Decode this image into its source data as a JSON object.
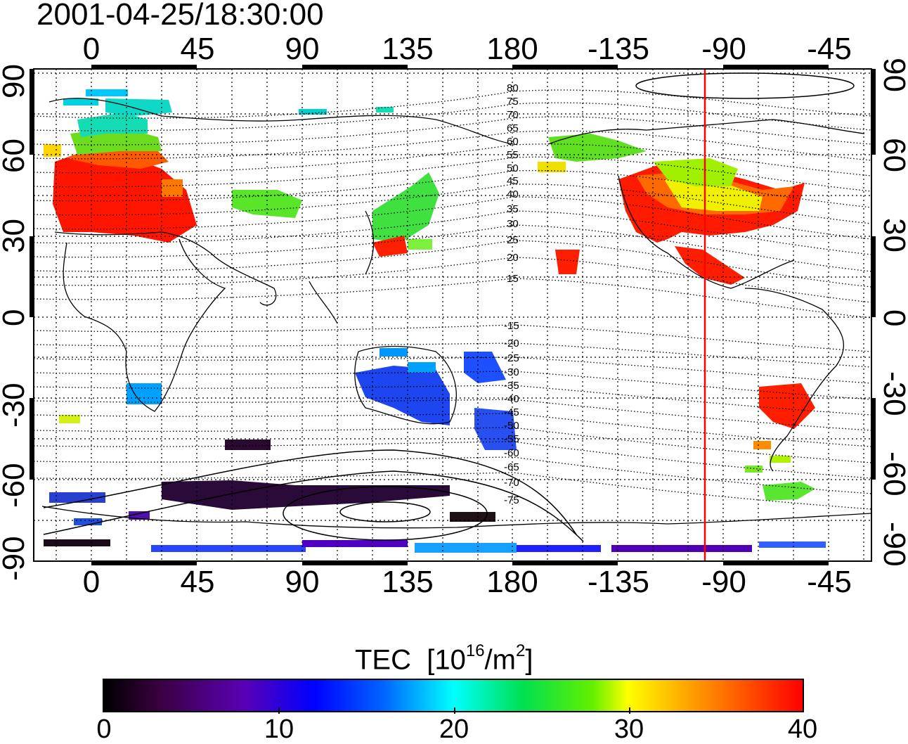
{
  "timestamp": "2001-04-25/18:30:00",
  "longitude_ticks": [
    "0",
    "45",
    "90",
    "135",
    "180",
    "-135",
    "-90",
    "-45"
  ],
  "latitude_ticks": [
    "90",
    "60",
    "30",
    "0",
    "-30",
    "-60",
    "-90"
  ],
  "contour_labels": [
    "80",
    "75",
    "70",
    "65",
    "60",
    "55",
    "50",
    "45",
    "40",
    "35",
    "30",
    "25",
    "20",
    "15",
    "-15",
    "-20",
    "-25",
    "-30",
    "-35",
    "-40",
    "-45",
    "-50",
    "-55",
    "-60",
    "-65",
    "-70",
    "-75"
  ],
  "colorbar": {
    "title": "TEC",
    "unit_base": "[10",
    "unit_exp1": "16",
    "unit_mid": "/m",
    "unit_exp2": "2",
    "unit_end": "]",
    "ticks": [
      "0",
      "10",
      "20",
      "30",
      "40"
    ],
    "range": [
      0,
      40
    ]
  },
  "colors": {
    "marker_line": "#ff0000",
    "frame": "#000000"
  }
}
